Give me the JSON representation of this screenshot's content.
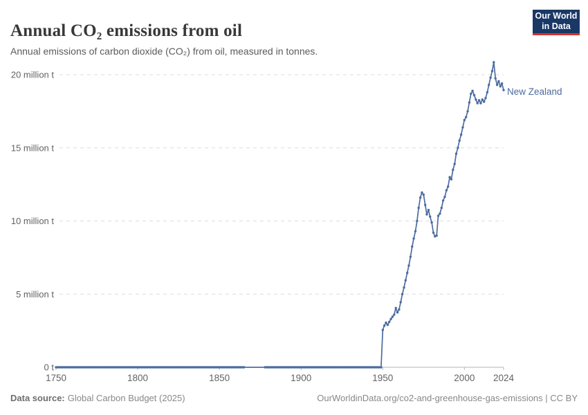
{
  "header": {
    "title": "Annual CO₂ emissions from oil",
    "subtitle": "Annual emissions of carbon dioxide (CO₂) from oil, measured in tonnes.",
    "logo": {
      "line1": "Our World",
      "line2": "in Data",
      "bg_color": "#1a3866",
      "accent_color": "#d7332e"
    }
  },
  "chart_data": {
    "type": "line",
    "title": "Annual CO₂ emissions from oil",
    "unit": "tonnes",
    "x_range": [
      1750,
      2024
    ],
    "y_range_million_t": [
      0,
      20
    ],
    "grid": "horizontal dashed",
    "legend_position": "end-of-line label",
    "x_ticks": [
      1750,
      1800,
      1850,
      1900,
      1950,
      2000,
      2024
    ],
    "y_ticks": [
      {
        "value": 0,
        "label": "0 t"
      },
      {
        "value": 5,
        "label": "5 million t"
      },
      {
        "value": 10,
        "label": "10 million t"
      },
      {
        "value": 15,
        "label": "15 million t"
      },
      {
        "value": 20,
        "label": "20 million t"
      }
    ],
    "series": [
      {
        "name": "New Zealand",
        "color": "#4C6B9F",
        "zero_era": {
          "start_year": 1750,
          "end_year": 1949,
          "value": 0
        },
        "marker_gap": {
          "start_year": 1866,
          "end_year": 1877
        },
        "points_million_t": [
          [
            1950,
            2.55
          ],
          [
            1951,
            2.85
          ],
          [
            1952,
            3.05
          ],
          [
            1953,
            2.9
          ],
          [
            1954,
            3.1
          ],
          [
            1955,
            3.3
          ],
          [
            1956,
            3.45
          ],
          [
            1957,
            3.6
          ],
          [
            1958,
            4.05
          ],
          [
            1959,
            3.75
          ],
          [
            1960,
            3.95
          ],
          [
            1961,
            4.45
          ],
          [
            1962,
            5.0
          ],
          [
            1963,
            5.45
          ],
          [
            1964,
            5.95
          ],
          [
            1965,
            6.45
          ],
          [
            1966,
            6.95
          ],
          [
            1967,
            7.55
          ],
          [
            1968,
            8.25
          ],
          [
            1969,
            8.8
          ],
          [
            1970,
            9.3
          ],
          [
            1971,
            10.0
          ],
          [
            1972,
            10.9
          ],
          [
            1973,
            11.6
          ],
          [
            1974,
            11.95
          ],
          [
            1975,
            11.8
          ],
          [
            1976,
            11.1
          ],
          [
            1977,
            10.45
          ],
          [
            1978,
            10.75
          ],
          [
            1979,
            10.3
          ],
          [
            1980,
            9.9
          ],
          [
            1981,
            9.2
          ],
          [
            1982,
            8.95
          ],
          [
            1983,
            9.0
          ],
          [
            1984,
            10.35
          ],
          [
            1985,
            10.5
          ],
          [
            1986,
            10.9
          ],
          [
            1987,
            11.4
          ],
          [
            1988,
            11.65
          ],
          [
            1989,
            12.1
          ],
          [
            1990,
            12.35
          ],
          [
            1991,
            13.0
          ],
          [
            1992,
            12.85
          ],
          [
            1993,
            13.5
          ],
          [
            1994,
            13.9
          ],
          [
            1995,
            14.6
          ],
          [
            1996,
            15.0
          ],
          [
            1997,
            15.5
          ],
          [
            1998,
            15.9
          ],
          [
            1999,
            16.4
          ],
          [
            2000,
            16.9
          ],
          [
            2001,
            17.1
          ],
          [
            2002,
            17.5
          ],
          [
            2003,
            18.1
          ],
          [
            2004,
            18.7
          ],
          [
            2005,
            18.9
          ],
          [
            2006,
            18.6
          ],
          [
            2007,
            18.3
          ],
          [
            2008,
            18.05
          ],
          [
            2009,
            18.25
          ],
          [
            2010,
            18.05
          ],
          [
            2011,
            18.3
          ],
          [
            2012,
            18.15
          ],
          [
            2013,
            18.4
          ],
          [
            2014,
            18.8
          ],
          [
            2015,
            19.3
          ],
          [
            2016,
            19.8
          ],
          [
            2017,
            20.25
          ],
          [
            2018,
            20.85
          ],
          [
            2019,
            19.75
          ],
          [
            2020,
            19.3
          ],
          [
            2021,
            19.55
          ],
          [
            2022,
            19.2
          ],
          [
            2023,
            19.4
          ],
          [
            2024,
            18.95
          ]
        ]
      }
    ]
  },
  "footer": {
    "source_label": "Data source:",
    "source_value": "Global Carbon Budget (2025)",
    "link": "OurWorldinData.org/co2-and-greenhouse-gas-emissions | CC BY"
  }
}
